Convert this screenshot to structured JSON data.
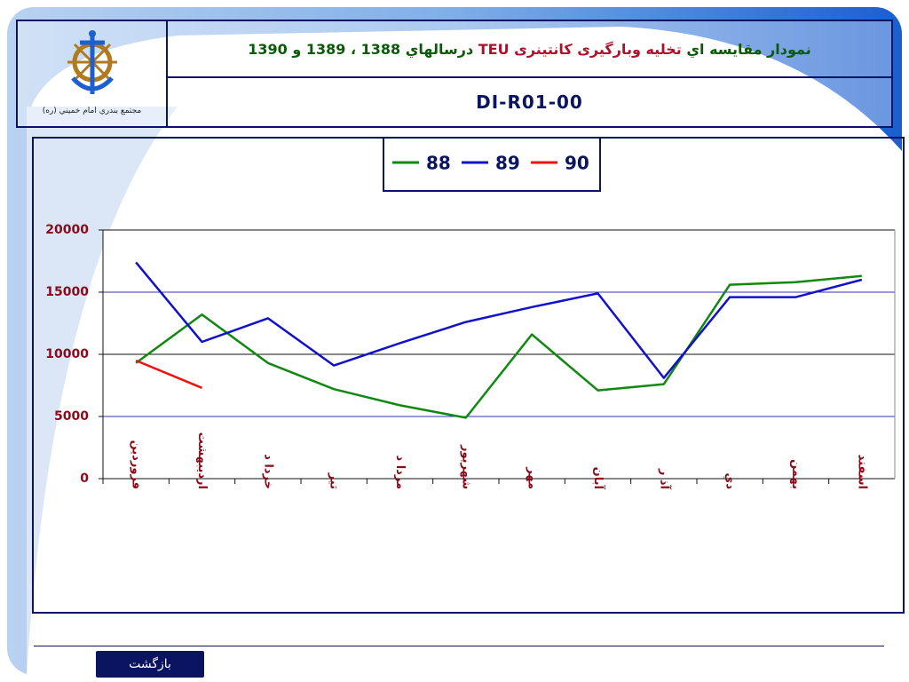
{
  "header": {
    "title_parts": [
      "نمودار مقايسه اي",
      "تخليه وبارگيری كانتينری TEU",
      "درسالهاي 1388 ، 1389 و 1390"
    ],
    "code": "DI-R01-00",
    "logo_caption": "مجتمع بندري امام خميني (ره)"
  },
  "chart_data": {
    "type": "line",
    "categories": [
      "فروردين",
      "ارديبهشت",
      "خردا د",
      "تير",
      "مردا د",
      "شهريور",
      "مهر",
      "آبان",
      "آذ ر",
      "دي",
      "بهمن",
      "اسفند"
    ],
    "series": [
      {
        "name": "88",
        "color": "#118811",
        "values": [
          9300,
          13200,
          9300,
          7200,
          5900,
          4900,
          11600,
          7100,
          7600,
          15600,
          15800,
          16300
        ]
      },
      {
        "name": "89",
        "color": "#1111cc",
        "values": [
          17400,
          11000,
          12900,
          9100,
          10900,
          12600,
          13800,
          14900,
          8100,
          14600,
          14600,
          16000
        ]
      },
      {
        "name": "90",
        "color": "#ee1111",
        "values": [
          9500,
          7300,
          null,
          null,
          null,
          null,
          null,
          null,
          null,
          null,
          null,
          null
        ]
      }
    ],
    "ylim": [
      0,
      20000
    ],
    "yticks": [
      0,
      5000,
      10000,
      15000,
      20000
    ],
    "grid": true,
    "legend": "top"
  },
  "footer": {
    "back_button": "بازگشت"
  }
}
